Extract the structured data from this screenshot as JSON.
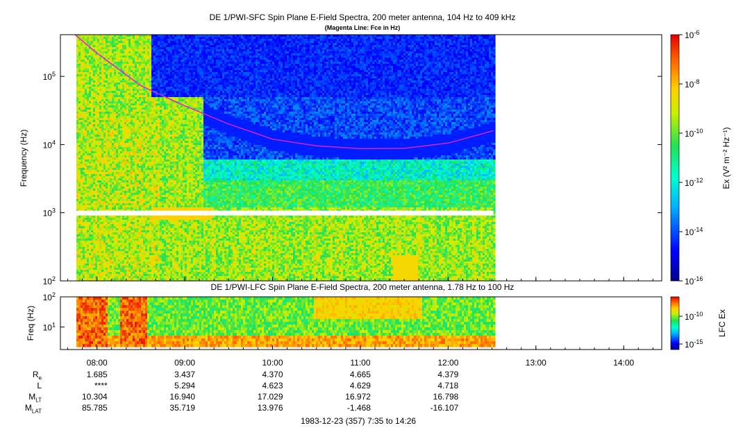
{
  "top_panel": {
    "title": "DE 1/PWI-SFC  Spin Plane E-Field Spectra, 200 meter antenna, 104 Hz to 409 kHz",
    "subtitle": "(Magenta Line: Fce in Hz)",
    "ylabel": "Frequency (Hz)",
    "y_ticks": [
      {
        "base": "10",
        "exp": "2"
      },
      {
        "base": "10",
        "exp": "3"
      },
      {
        "base": "10",
        "exp": "4"
      },
      {
        "base": "10",
        "exp": "5"
      }
    ],
    "colorbar_label": "Ex (V² m⁻² Hz⁻¹)",
    "colorbar_ticks": [
      {
        "base": "10",
        "exp": "-6"
      },
      {
        "base": "10",
        "exp": "-8"
      },
      {
        "base": "10",
        "exp": "-10"
      },
      {
        "base": "10",
        "exp": "-12"
      },
      {
        "base": "10",
        "exp": "-14"
      },
      {
        "base": "10",
        "exp": "-16"
      }
    ]
  },
  "bottom_panel": {
    "title": "DE 1/PWI-LFC  Spin Plane E-Field Spectra, 200 meter antenna, 1.78 Hz to 100 Hz",
    "ylabel": "Freq (Hz)",
    "y_ticks": [
      {
        "base": "10",
        "exp": "1"
      },
      {
        "base": "10",
        "exp": "2"
      }
    ],
    "colorbar_label": "LFC Ex",
    "colorbar_ticks": [
      {
        "base": "10",
        "exp": "-10"
      },
      {
        "base": "10",
        "exp": "-15"
      }
    ]
  },
  "x_ticks": [
    "08:00",
    "09:00",
    "10:00",
    "11:00",
    "12:00",
    "13:00",
    "14:00"
  ],
  "ephemeris": {
    "labels": [
      {
        "main": "R",
        "sub": "e"
      },
      {
        "main": "L",
        "sub": ""
      },
      {
        "main": "M",
        "sub": "LT"
      },
      {
        "main": "M",
        "sub": "LAT"
      }
    ],
    "rows": [
      [
        "1.685",
        "3.437",
        "4.370",
        "4.665",
        "4.379"
      ],
      [
        "****",
        "5.294",
        "4.623",
        "4.629",
        "4.718"
      ],
      [
        "10.304",
        "16.940",
        "17.029",
        "16.972",
        "16.798"
      ],
      [
        "85.785",
        "35.719",
        "13.976",
        "-1.468",
        "-16.107"
      ]
    ]
  },
  "footer": "1983-12-23 (357) 7:35 to 14:26",
  "chart_data": {
    "type": "heatmap",
    "x_range": [
      "07:35",
      "14:26"
    ],
    "data_end": "12:31",
    "top_spectrogram": {
      "ylim_hz": [
        100,
        409000
      ],
      "y_scale": "log",
      "color_range": [
        1e-16,
        1e-06
      ],
      "color_scale": "log",
      "fce_line": {
        "name": "Fce in Hz",
        "color": "#e020e0",
        "x": [
          "07:45",
          "08:00",
          "08:30",
          "09:00",
          "09:30",
          "10:00",
          "10:30",
          "11:00",
          "11:30",
          "12:00",
          "12:31"
        ],
        "y": [
          409000,
          220000,
          73000,
          37000,
          20000,
          12000,
          9600,
          8700,
          8800,
          10500,
          16000
        ]
      }
    },
    "bottom_spectrogram": {
      "ylim_hz": [
        1.78,
        100
      ],
      "y_scale": "log",
      "color_range": [
        1e-17,
        1e-07
      ],
      "color_scale": "log"
    },
    "colors": {
      "low": "#00008c",
      "mid": "#22e055",
      "high": "#e60000"
    }
  }
}
